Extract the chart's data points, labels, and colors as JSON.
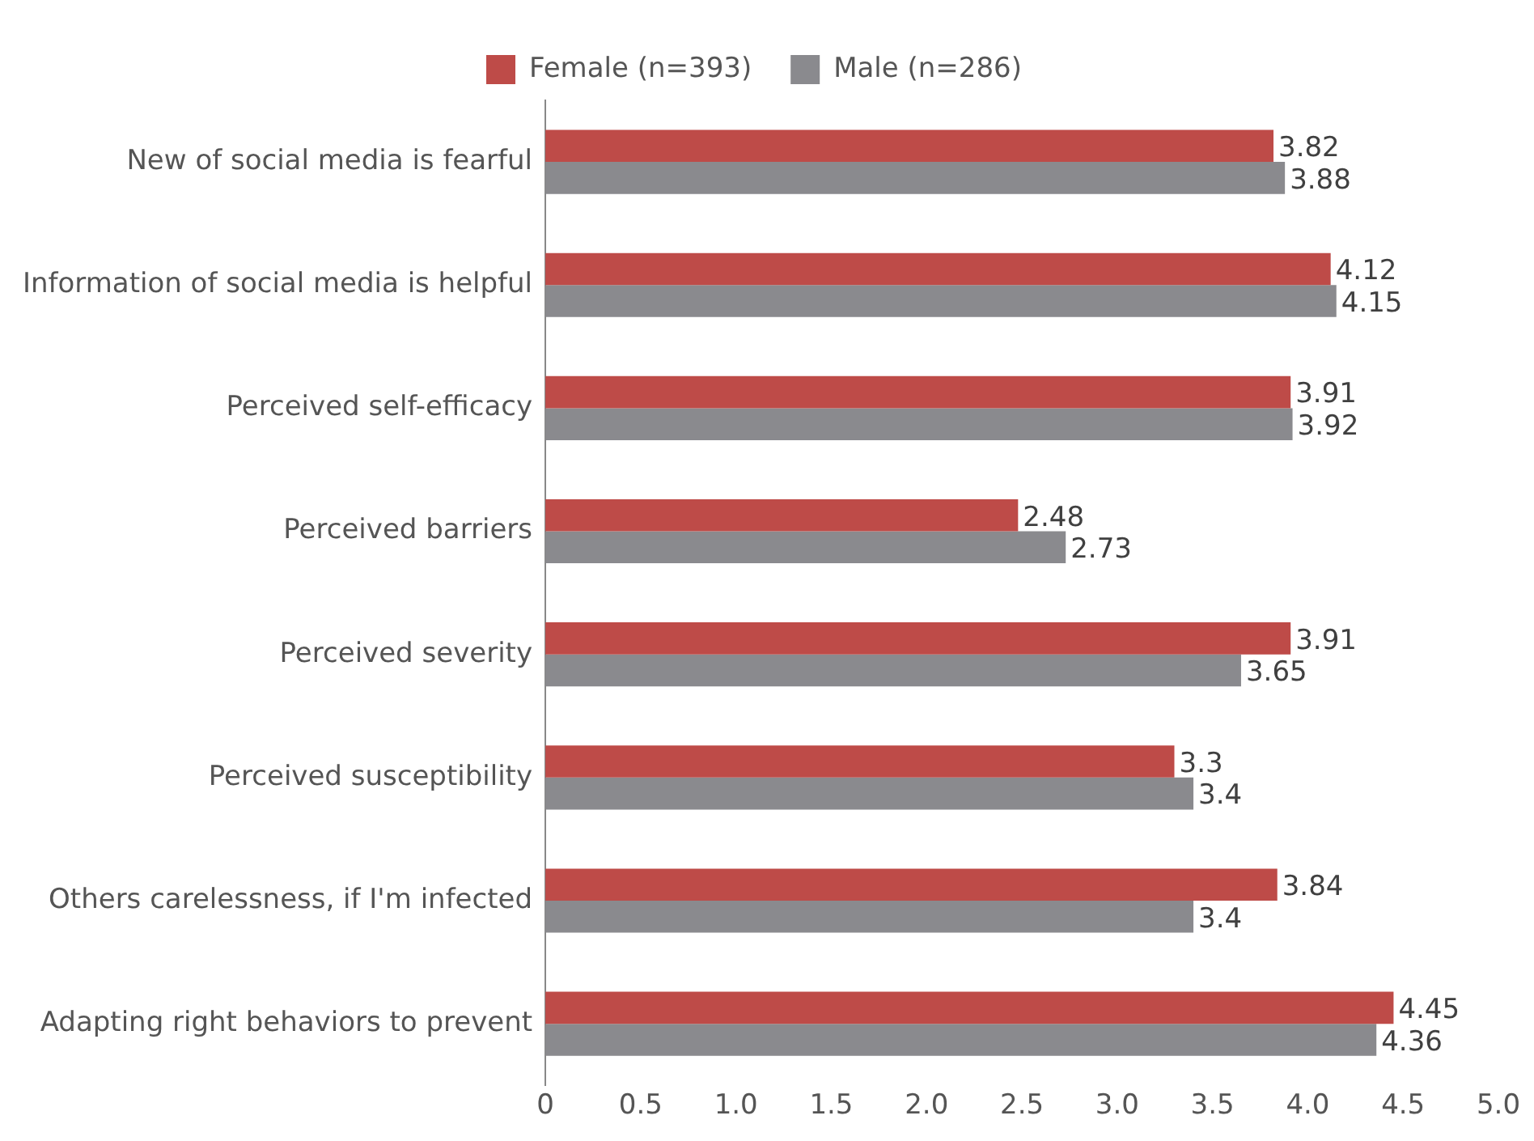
{
  "chart_data": {
    "type": "bar",
    "orientation": "horizontal",
    "categories": [
      "New of social media is fearful",
      "Information of social media is helpful",
      "Perceived self-efficacy",
      "Perceived barriers",
      "Perceived severity",
      "Perceived susceptibility",
      "Others carelessness, if I'm infected",
      "Adapting right behaviors to prevent"
    ],
    "series": [
      {
        "name": "Female (n=393)",
        "color": "#be4b48",
        "values": [
          3.82,
          4.12,
          3.91,
          2.48,
          3.91,
          3.3,
          3.84,
          4.45
        ]
      },
      {
        "name": "Male (n=286)",
        "color": "#8a8a8e",
        "values": [
          3.88,
          4.15,
          3.92,
          2.73,
          3.65,
          3.4,
          3.4,
          4.36
        ]
      }
    ],
    "xlim": [
      0,
      5
    ],
    "xticks": [
      0,
      0.5,
      {
        "value": 1,
        "label": "1.0"
      },
      1.5,
      {
        "value": 2,
        "label": "2.0"
      },
      2.5,
      {
        "value": 3,
        "label": "3.0"
      },
      3.5,
      {
        "value": 4,
        "label": "4.0"
      },
      4.5,
      {
        "value": 5,
        "label": "5.0"
      }
    ],
    "grid": false,
    "legend": "top",
    "data_labels": true
  }
}
